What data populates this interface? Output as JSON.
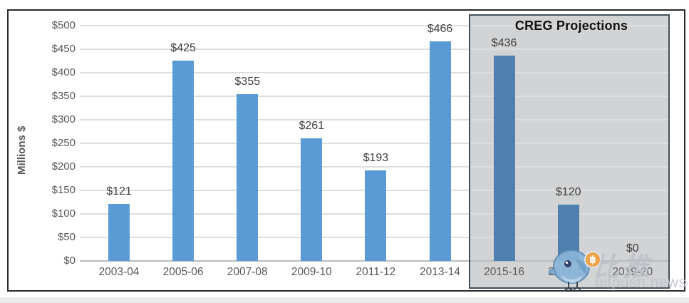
{
  "chart_data": {
    "type": "bar",
    "title": "",
    "ylabel": "Millions $",
    "categories": [
      "2003-04",
      "2005-06",
      "2007-08",
      "2009-10",
      "2011-12",
      "2013-14",
      "2015-16",
      "2017-18",
      "2019-20"
    ],
    "values": [
      121,
      425,
      355,
      261,
      193,
      466,
      436,
      120,
      0
    ],
    "value_labels": [
      "$121",
      "$425",
      "$355",
      "$261",
      "$193",
      "$466",
      "$436",
      "$120",
      "$0"
    ],
    "ylim": [
      0,
      500
    ],
    "ytick_step": 50,
    "ytick_labels": [
      "$0",
      "$50",
      "$100",
      "$150",
      "$200",
      "$250",
      "$300",
      "$350",
      "$400",
      "$450",
      "$500"
    ],
    "grid": "horizontal",
    "legend": "none",
    "annotation_box": {
      "label": "CREG Projections",
      "applies_to": [
        "2015-16",
        "2017-18",
        "2019-20"
      ],
      "start_index": 6
    },
    "colors": {
      "bar": "#5b9bd5",
      "projection_bar": "#4e81b0",
      "box_background": "#d2d3d5",
      "box_border": "#44505a",
      "gridline": "#dcdee0",
      "baseline": "#b7bcc0",
      "axis_text": "#595959",
      "value_label_text": "#3f3f3f"
    }
  },
  "watermark": {
    "brand_cn": "比推",
    "brand_site": "bitpush.news",
    "bird_icon_color": "#8ab5d9",
    "bitcoin_icon_color": "#f0a03c",
    "bitcoin_glyph": "฿"
  }
}
